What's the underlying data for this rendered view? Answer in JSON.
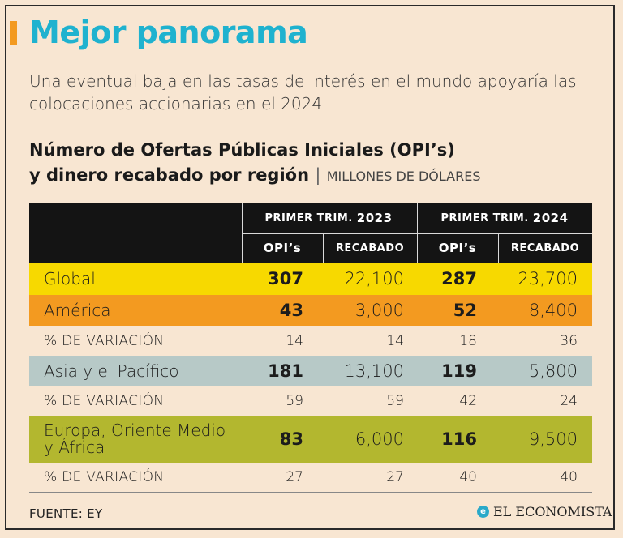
{
  "title": "Mejor panorama",
  "subtitle": "Una eventual baja en las tasas de interés en el mundo apoyaría las colocaciones accionarias en el 2024",
  "table_title": {
    "line1": "Número de Ofertas Públicas Iniciales (OPI’s)",
    "line2": "y dinero recabado por región",
    "separator": "|",
    "unit": "MILLONES DE DÓLARES"
  },
  "header": {
    "periods": [
      {
        "label": "PRIMER TRIM.",
        "year": "2023"
      },
      {
        "label": "PRIMER TRIM.",
        "year": "2024"
      }
    ],
    "columns": [
      "OPI’s",
      "RECABADO",
      "OPI’s",
      "RECABADO"
    ]
  },
  "rows": [
    {
      "label": "Global",
      "values": [
        "307",
        "22,100",
        "287",
        "23,700"
      ]
    },
    {
      "label": "América",
      "values": [
        "43",
        "3,000",
        "52",
        "8,400"
      ]
    },
    {
      "label": "% DE VARIACIÓN",
      "values": [
        "14",
        "14",
        "18",
        "36"
      ]
    },
    {
      "label": "Asia y el Pacífico",
      "values": [
        "181",
        "13,100",
        "119",
        "5,800"
      ]
    },
    {
      "label": "% DE VARIACIÓN",
      "values": [
        "59",
        "59",
        "42",
        "24"
      ]
    },
    {
      "label": "Europa, Oriente Medio y África",
      "values": [
        "83",
        "6,000",
        "116",
        "9,500"
      ]
    },
    {
      "label": "% DE VARIACIÓN",
      "values": [
        "27",
        "27",
        "40",
        "40"
      ]
    }
  ],
  "source": "FUENTE: EY",
  "logo_text": "EL ECONOMISTA",
  "colors": {
    "title": "#1fb2cf",
    "accent": "#f39a20",
    "global": "#f7d900",
    "america": "#f39a20",
    "asia": "#b7c9c7",
    "europa": "#b3b72f",
    "background": "#f8e6d2"
  }
}
